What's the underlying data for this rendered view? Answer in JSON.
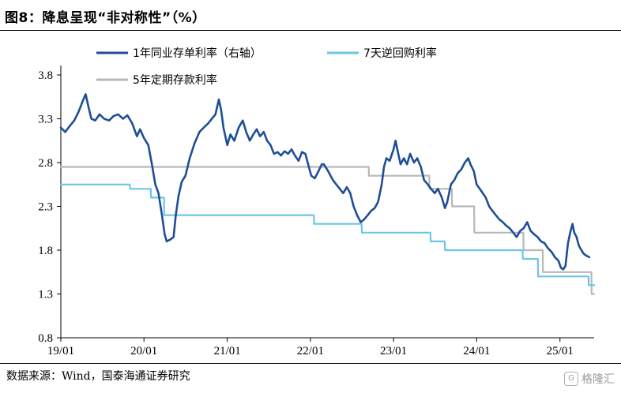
{
  "header": {
    "title": "图8：降息呈现“非对称性”（%）"
  },
  "footer": {
    "source": "数据来源：Wind，国泰海通证券研究",
    "watermark": "格隆汇"
  },
  "colors": {
    "interbank": "#1f4e96",
    "reverse_repo": "#6cc5e8",
    "deposit": "#b8b8b8"
  },
  "chart_data": {
    "type": "line",
    "title": "降息呈现“非对称性”（%）",
    "ylim": [
      0.8,
      3.8
    ],
    "yticks": [
      "0.8",
      "1.3",
      "1.8",
      "2.3",
      "2.8",
      "3.3",
      "3.8"
    ],
    "xlim": [
      "2019-01",
      "2025-05"
    ],
    "xticks": [
      "19/01",
      "20/01",
      "21/01",
      "22/01",
      "23/01",
      "24/01",
      "25/01"
    ],
    "legend": [
      "1年同业存单利率（右轴）",
      "7天逆回购利率",
      "5年定期存款利率"
    ],
    "legend_position": "top",
    "series": [
      {
        "name": "1年同业存单利率（右轴）",
        "key": "interbank",
        "points": [
          [
            "2019-01-01",
            3.2
          ],
          [
            "2019-01-20",
            3.15
          ],
          [
            "2019-02-10",
            3.22
          ],
          [
            "2019-03-01",
            3.28
          ],
          [
            "2019-03-20",
            3.38
          ],
          [
            "2019-04-10",
            3.52
          ],
          [
            "2019-04-20",
            3.58
          ],
          [
            "2019-05-01",
            3.45
          ],
          [
            "2019-05-15",
            3.3
          ],
          [
            "2019-06-01",
            3.28
          ],
          [
            "2019-06-20",
            3.35
          ],
          [
            "2019-07-10",
            3.3
          ],
          [
            "2019-08-01",
            3.28
          ],
          [
            "2019-08-20",
            3.33
          ],
          [
            "2019-09-10",
            3.35
          ],
          [
            "2019-10-01",
            3.3
          ],
          [
            "2019-10-20",
            3.34
          ],
          [
            "2019-11-10",
            3.25
          ],
          [
            "2019-12-01",
            3.1
          ],
          [
            "2019-12-15",
            3.18
          ],
          [
            "2020-01-01",
            3.08
          ],
          [
            "2020-01-20",
            3.0
          ],
          [
            "2020-02-05",
            2.78
          ],
          [
            "2020-02-20",
            2.55
          ],
          [
            "2020-03-05",
            2.45
          ],
          [
            "2020-03-20",
            2.2
          ],
          [
            "2020-04-01",
            1.98
          ],
          [
            "2020-04-10",
            1.9
          ],
          [
            "2020-04-25",
            1.92
          ],
          [
            "2020-05-10",
            1.95
          ],
          [
            "2020-05-20",
            2.2
          ],
          [
            "2020-06-01",
            2.42
          ],
          [
            "2020-06-15",
            2.58
          ],
          [
            "2020-07-01",
            2.65
          ],
          [
            "2020-07-20",
            2.85
          ],
          [
            "2020-08-10",
            3.02
          ],
          [
            "2020-09-01",
            3.15
          ],
          [
            "2020-09-20",
            3.2
          ],
          [
            "2020-10-10",
            3.25
          ],
          [
            "2020-10-25",
            3.3
          ],
          [
            "2020-11-10",
            3.35
          ],
          [
            "2020-11-25",
            3.52
          ],
          [
            "2020-12-05",
            3.4
          ],
          [
            "2020-12-15",
            3.2
          ],
          [
            "2021-01-01",
            3.0
          ],
          [
            "2021-01-15",
            3.12
          ],
          [
            "2021-02-01",
            3.05
          ],
          [
            "2021-02-20",
            3.2
          ],
          [
            "2021-03-10",
            3.28
          ],
          [
            "2021-03-25",
            3.15
          ],
          [
            "2021-04-10",
            3.05
          ],
          [
            "2021-04-25",
            3.12
          ],
          [
            "2021-05-10",
            3.18
          ],
          [
            "2021-05-25",
            3.1
          ],
          [
            "2021-06-10",
            3.15
          ],
          [
            "2021-06-25",
            3.05
          ],
          [
            "2021-07-10",
            3.0
          ],
          [
            "2021-07-25",
            2.9
          ],
          [
            "2021-08-10",
            2.92
          ],
          [
            "2021-08-25",
            2.88
          ],
          [
            "2021-09-10",
            2.93
          ],
          [
            "2021-09-25",
            2.9
          ],
          [
            "2021-10-10",
            2.95
          ],
          [
            "2021-10-25",
            2.88
          ],
          [
            "2021-11-10",
            2.82
          ],
          [
            "2021-11-25",
            2.92
          ],
          [
            "2021-12-10",
            2.9
          ],
          [
            "2021-12-25",
            2.75
          ],
          [
            "2022-01-05",
            2.65
          ],
          [
            "2022-01-20",
            2.62
          ],
          [
            "2022-02-05",
            2.7
          ],
          [
            "2022-02-20",
            2.78
          ],
          [
            "2022-03-01",
            2.78
          ],
          [
            "2022-03-20",
            2.7
          ],
          [
            "2022-04-10",
            2.6
          ],
          [
            "2022-04-25",
            2.55
          ],
          [
            "2022-05-10",
            2.5
          ],
          [
            "2022-05-25",
            2.45
          ],
          [
            "2022-06-10",
            2.52
          ],
          [
            "2022-06-25",
            2.45
          ],
          [
            "2022-07-10",
            2.3
          ],
          [
            "2022-07-25",
            2.2
          ],
          [
            "2022-08-10",
            2.12
          ],
          [
            "2022-08-25",
            2.15
          ],
          [
            "2022-09-10",
            2.2
          ],
          [
            "2022-09-25",
            2.25
          ],
          [
            "2022-10-10",
            2.28
          ],
          [
            "2022-10-25",
            2.35
          ],
          [
            "2022-11-10",
            2.55
          ],
          [
            "2022-11-20",
            2.75
          ],
          [
            "2022-12-01",
            2.85
          ],
          [
            "2022-12-15",
            2.82
          ],
          [
            "2023-01-01",
            2.95
          ],
          [
            "2023-01-10",
            3.05
          ],
          [
            "2023-01-20",
            2.92
          ],
          [
            "2023-02-01",
            2.78
          ],
          [
            "2023-02-15",
            2.85
          ],
          [
            "2023-03-01",
            2.78
          ],
          [
            "2023-03-15",
            2.9
          ],
          [
            "2023-04-01",
            2.8
          ],
          [
            "2023-04-15",
            2.85
          ],
          [
            "2023-05-01",
            2.75
          ],
          [
            "2023-05-15",
            2.6
          ],
          [
            "2023-06-01",
            2.55
          ],
          [
            "2023-06-15",
            2.5
          ],
          [
            "2023-07-01",
            2.45
          ],
          [
            "2023-07-15",
            2.5
          ],
          [
            "2023-08-01",
            2.4
          ],
          [
            "2023-08-15",
            2.28
          ],
          [
            "2023-08-25",
            2.35
          ],
          [
            "2023-09-10",
            2.55
          ],
          [
            "2023-09-25",
            2.6
          ],
          [
            "2023-10-10",
            2.68
          ],
          [
            "2023-10-25",
            2.72
          ],
          [
            "2023-11-10",
            2.8
          ],
          [
            "2023-11-25",
            2.85
          ],
          [
            "2023-12-05",
            2.78
          ],
          [
            "2023-12-20",
            2.7
          ],
          [
            "2024-01-01",
            2.55
          ],
          [
            "2024-01-20",
            2.48
          ],
          [
            "2024-02-10",
            2.4
          ],
          [
            "2024-02-25",
            2.3
          ],
          [
            "2024-03-10",
            2.25
          ],
          [
            "2024-03-25",
            2.2
          ],
          [
            "2024-04-10",
            2.15
          ],
          [
            "2024-04-25",
            2.12
          ],
          [
            "2024-05-10",
            2.08
          ],
          [
            "2024-05-25",
            2.05
          ],
          [
            "2024-06-10",
            2.0
          ],
          [
            "2024-06-25",
            1.95
          ],
          [
            "2024-07-10",
            2.02
          ],
          [
            "2024-07-25",
            2.05
          ],
          [
            "2024-08-10",
            2.12
          ],
          [
            "2024-08-25",
            2.02
          ],
          [
            "2024-09-10",
            1.98
          ],
          [
            "2024-09-25",
            1.95
          ],
          [
            "2024-10-10",
            1.9
          ],
          [
            "2024-10-25",
            1.88
          ],
          [
            "2024-11-10",
            1.82
          ],
          [
            "2024-11-25",
            1.78
          ],
          [
            "2024-12-10",
            1.72
          ],
          [
            "2024-12-25",
            1.68
          ],
          [
            "2025-01-05",
            1.6
          ],
          [
            "2025-01-15",
            1.58
          ],
          [
            "2025-01-25",
            1.62
          ],
          [
            "2025-02-05",
            1.88
          ],
          [
            "2025-02-15",
            2.0
          ],
          [
            "2025-02-25",
            2.1
          ],
          [
            "2025-03-05",
            2.0
          ],
          [
            "2025-03-15",
            1.95
          ],
          [
            "2025-03-25",
            1.85
          ],
          [
            "2025-04-05",
            1.8
          ],
          [
            "2025-04-15",
            1.76
          ],
          [
            "2025-04-25",
            1.74
          ],
          [
            "2025-05-10",
            1.72
          ]
        ]
      },
      {
        "name": "7天逆回购利率",
        "key": "reverse_repo",
        "points": [
          [
            "2019-01-01",
            2.55
          ],
          [
            "2019-10-31",
            2.55
          ],
          [
            "2019-11-01",
            2.5
          ],
          [
            "2020-01-31",
            2.5
          ],
          [
            "2020-02-01",
            2.4
          ],
          [
            "2020-03-29",
            2.4
          ],
          [
            "2020-03-30",
            2.2
          ],
          [
            "2022-01-16",
            2.2
          ],
          [
            "2022-01-17",
            2.1
          ],
          [
            "2022-08-14",
            2.1
          ],
          [
            "2022-08-15",
            2.0
          ],
          [
            "2023-06-12",
            2.0
          ],
          [
            "2023-06-13",
            1.9
          ],
          [
            "2023-08-14",
            1.9
          ],
          [
            "2023-08-15",
            1.8
          ],
          [
            "2024-07-21",
            1.8
          ],
          [
            "2024-07-22",
            1.7
          ],
          [
            "2024-09-26",
            1.7
          ],
          [
            "2024-09-27",
            1.5
          ],
          [
            "2025-05-06",
            1.5
          ],
          [
            "2025-05-07",
            1.4
          ],
          [
            "2025-05-31",
            1.4
          ]
        ]
      },
      {
        "name": "5年定期存款利率",
        "key": "deposit",
        "points": [
          [
            "2019-01-01",
            2.75
          ],
          [
            "2022-09-14",
            2.75
          ],
          [
            "2022-09-15",
            2.65
          ],
          [
            "2023-06-07",
            2.65
          ],
          [
            "2023-06-08",
            2.5
          ],
          [
            "2023-09-00",
            2.5
          ],
          [
            "2023-09-01",
            2.5
          ],
          [
            "2023-09-14",
            2.5
          ],
          [
            "2023-09-15",
            2.3
          ],
          [
            "2023-12-21",
            2.3
          ],
          [
            "2023-12-22",
            2.0
          ],
          [
            "2024-07-24",
            2.0
          ],
          [
            "2024-07-25",
            1.8
          ],
          [
            "2024-10-17",
            1.8
          ],
          [
            "2024-10-18",
            1.55
          ],
          [
            "2025-05-19",
            1.55
          ],
          [
            "2025-05-20",
            1.3
          ],
          [
            "2025-05-31",
            1.3
          ]
        ]
      }
    ]
  }
}
